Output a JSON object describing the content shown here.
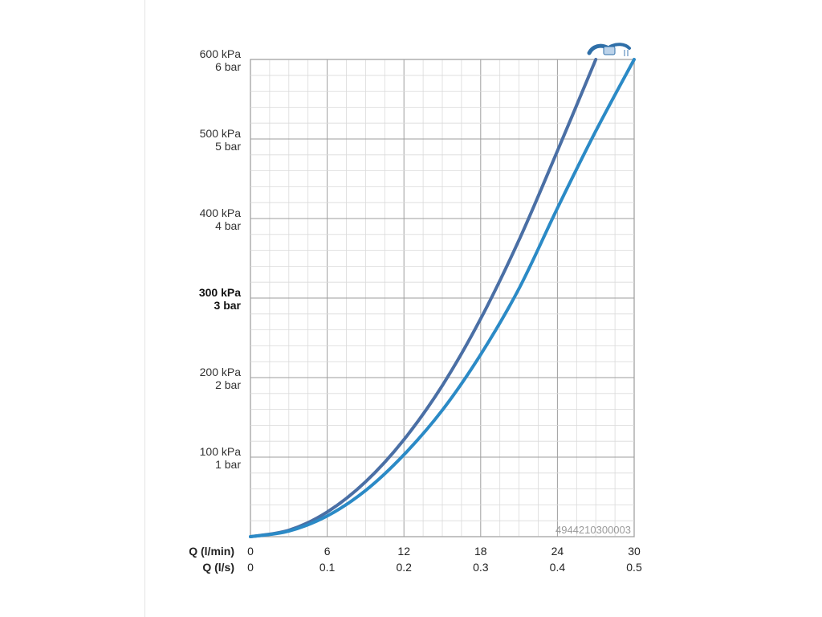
{
  "chart_data": {
    "type": "line",
    "x_primary": {
      "label": "Q (l/min)",
      "ticks": [
        0,
        6,
        12,
        18,
        24,
        30
      ],
      "range": [
        0,
        30
      ]
    },
    "x_secondary": {
      "label": "Q (l/s)",
      "ticks": [
        "0",
        "0.1",
        "0.2",
        "0.3",
        "0.4",
        "0.5"
      ]
    },
    "y_axis": {
      "range": [
        0,
        600
      ],
      "ticks": [
        {
          "value": 600,
          "line1": "600 kPa",
          "line2": "6 bar",
          "bold": false
        },
        {
          "value": 500,
          "line1": "500 kPa",
          "line2": "5 bar",
          "bold": false
        },
        {
          "value": 400,
          "line1": "400 kPa",
          "line2": "4 bar",
          "bold": false
        },
        {
          "value": 300,
          "line1": "300 kPa",
          "line2": "3 bar",
          "bold": true
        },
        {
          "value": 200,
          "line1": "200 kPa",
          "line2": "2 bar",
          "bold": false
        },
        {
          "value": 100,
          "line1": "100 kPa",
          "line2": "1 bar",
          "bold": false
        }
      ]
    },
    "grid": true,
    "series": [
      {
        "color": "#4a6fa5",
        "x": [
          0,
          3,
          6,
          9,
          12,
          15,
          18,
          21,
          24,
          27
        ],
        "y": [
          0,
          8,
          31,
          69,
          122,
          190,
          274,
          373,
          485,
          600
        ]
      },
      {
        "color": "#2b8ac6",
        "x": [
          0,
          3,
          6,
          9,
          12,
          15,
          18,
          21,
          24,
          27,
          30
        ],
        "y": [
          0,
          7,
          26,
          58,
          103,
          159,
          229,
          312,
          413,
          510,
          600
        ]
      }
    ],
    "annotation": "4944210300003",
    "icon": "shower-handshower-icon"
  }
}
